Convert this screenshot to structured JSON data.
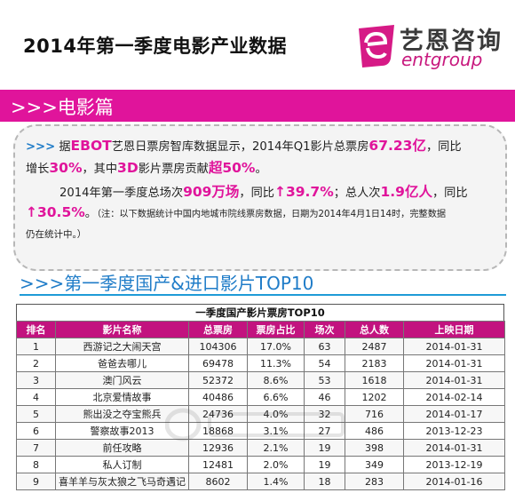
{
  "header": {
    "title": "2014年第一季度电影产业数据",
    "logo_cn": "艺恩咨询",
    "logo_en": "entgroup"
  },
  "section": {
    "title": ">>>电影篇"
  },
  "summary": {
    "l1_arrows": ">>>",
    "l1_a": " 据",
    "l1_ebot": "EBOT",
    "l1_b": "艺恩日票房智库数据显示，2014年Q1影片总票房",
    "l1_box": "67.23亿",
    "l1_c": "，同比",
    "l2_a": "增长",
    "l2_pct": "30%",
    "l2_b": "，其中",
    "l2_3d": "3D",
    "l2_c": "影片票房贡献",
    "l2_share": "超50%",
    "l2_d": "。",
    "l3_a": "2014年第一季度总场次",
    "l3_screenings": "909万场",
    "l3_b": "，同比",
    "l3_growth": "↑39.7%",
    "l3_c": "；总人次",
    "l3_admissions": "1.9亿人",
    "l3_d": "，同比",
    "l4_growth": "↑30.5%",
    "l4_a": "。",
    "l4_note": "（注：以下数据统计中国内地城市院线票房数据，日期为2014年4月1日14时，完整数据",
    "l5_note": "仍在统计中。）"
  },
  "subheading": {
    "title": ">>>第一季度国产&进口影片TOP10"
  },
  "table": {
    "title": "一季度国产影片票房TOP10",
    "columns": [
      "排名",
      "影片名称",
      "总票房",
      "票房占比",
      "场次",
      "总人数",
      "上映日期"
    ],
    "rows": [
      [
        "1",
        "西游记之大闹天宫",
        "104306",
        "17.0%",
        "63",
        "2487",
        "2014-01-31"
      ],
      [
        "2",
        "爸爸去哪儿",
        "69478",
        "11.3%",
        "54",
        "2183",
        "2014-01-31"
      ],
      [
        "3",
        "澳门风云",
        "52372",
        "8.6%",
        "53",
        "1618",
        "2014-01-31"
      ],
      [
        "4",
        "北京爱情故事",
        "40486",
        "6.6%",
        "46",
        "1202",
        "2014-02-14"
      ],
      [
        "5",
        "熊出没之夺宝熊兵",
        "24736",
        "4.0%",
        "32",
        "716",
        "2014-01-17"
      ],
      [
        "6",
        "警察故事2013",
        "18868",
        "3.1%",
        "27",
        "486",
        "2013-12-23"
      ],
      [
        "7",
        "前任攻略",
        "12936",
        "2.1%",
        "19",
        "398",
        "2014-01-31"
      ],
      [
        "8",
        "私人订制",
        "12481",
        "2.0%",
        "19",
        "349",
        "2013-12-19"
      ],
      [
        "9",
        "喜羊羊与灰太狼之飞马奇遇记",
        "8602",
        "1.4%",
        "18",
        "283",
        "2014-01-16"
      ]
    ]
  },
  "colors": {
    "brand_magenta": "#e0149b",
    "header_row": "#c2137f",
    "accent_blue": "#1f7cc8"
  }
}
